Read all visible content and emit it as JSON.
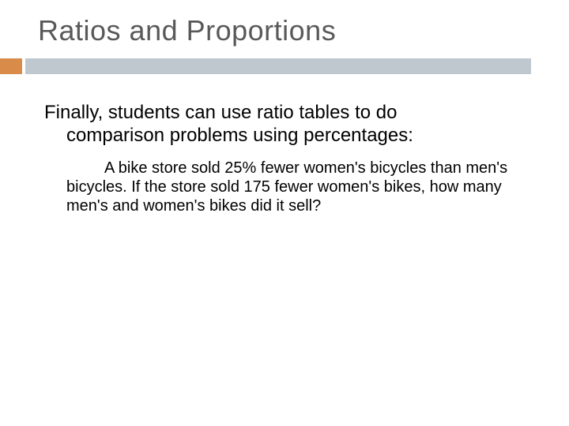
{
  "slide": {
    "title": "Ratios and Proportions",
    "intro_line1": "Finally, students can use ratio tables to do",
    "intro_line2": "comparison problems using percentages:",
    "problem_text": "A bike store sold 25% fewer women's bicycles than men's bicycles.  If the store sold 175 fewer women's bikes, how many men's and women's bikes did it sell?"
  },
  "style": {
    "title_color": "#595959",
    "title_fontsize": 36,
    "body_fontsize_main": 24,
    "body_fontsize_sub": 20,
    "accent_bar_color": "#d98c4a",
    "divider_bar_color": "#bfc8cf",
    "background_color": "#ffffff",
    "text_color": "#000000"
  }
}
